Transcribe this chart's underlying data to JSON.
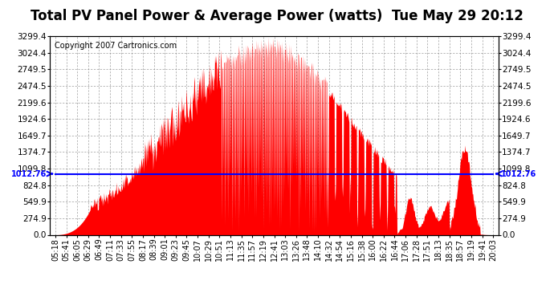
{
  "title": "Total PV Panel Power & Average Power (watts)  Tue May 29 20:12",
  "copyright": "Copyright 2007 Cartronics.com",
  "yticks": [
    0.0,
    274.9,
    549.9,
    824.8,
    1099.8,
    1374.7,
    1649.7,
    1924.6,
    2199.6,
    2474.5,
    2749.5,
    3024.4,
    3299.4
  ],
  "ymax": 3299.4,
  "avg_value": 1012.76,
  "avg_label": "1012.76",
  "x_labels": [
    "05:18",
    "05:41",
    "06:05",
    "06:29",
    "06:49",
    "07:11",
    "07:33",
    "07:55",
    "08:17",
    "08:39",
    "09:01",
    "09:23",
    "09:45",
    "10:07",
    "10:29",
    "10:51",
    "11:13",
    "11:35",
    "11:57",
    "12:19",
    "12:41",
    "13:03",
    "13:26",
    "13:48",
    "14:10",
    "14:32",
    "14:54",
    "15:16",
    "15:38",
    "16:00",
    "16:22",
    "16:44",
    "17:06",
    "17:28",
    "17:51",
    "18:13",
    "18:35",
    "18:57",
    "19:19",
    "19:41",
    "20:03"
  ],
  "n_labels": 41,
  "bg_color": "#ffffff",
  "bar_color": "#ff0000",
  "avg_line_color": "#0000ff",
  "grid_color": "#aaaaaa",
  "title_fontsize": 12,
  "copyright_fontsize": 7,
  "tick_fontsize": 7,
  "ytick_fontsize": 7.5
}
